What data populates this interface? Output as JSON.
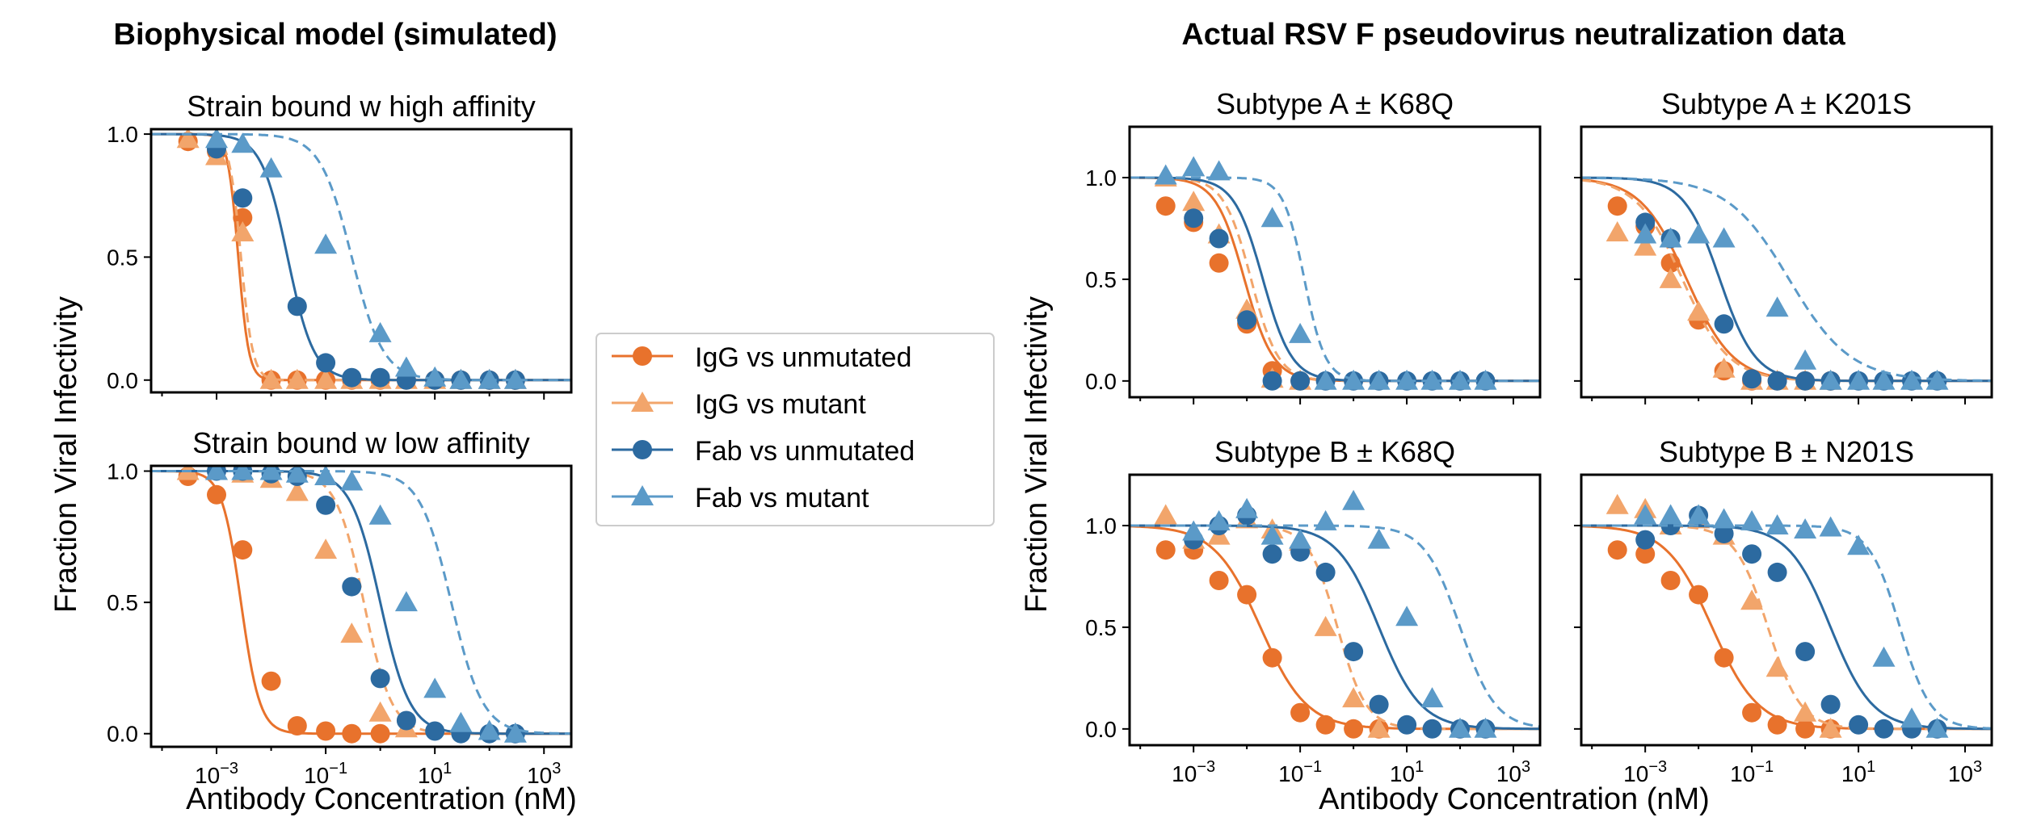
{
  "figure": {
    "left_title": "Biophysical model (simulated)",
    "right_title": "Actual RSV F pseudovirus neutralization data",
    "ylabel_left": "Fraction Viral Infectivity",
    "ylabel_right": "Fraction Viral Infectivity",
    "xlabel_left": "Antibody Concentration (nM)",
    "xlabel_right": "Antibody Concentration (nM)"
  },
  "legend": {
    "items": [
      {
        "label": "IgG vs unmutated",
        "color": "#e8722c",
        "marker": "circle",
        "line": "solid"
      },
      {
        "label": "IgG vs mutant",
        "color": "#f2a56b",
        "marker": "triangle",
        "line": "dashed"
      },
      {
        "label": "Fab vs unmutated",
        "color": "#2c6aa0",
        "marker": "circle",
        "line": "solid"
      },
      {
        "label": "Fab vs mutant",
        "color": "#5b9ac8",
        "marker": "triangle",
        "line": "dashed"
      }
    ]
  },
  "chart_data": [
    {
      "type": "line",
      "id": "sim-high",
      "title": "Strain bound w high affinity",
      "xscale": "log10",
      "xlim_exp": [
        -4.2,
        3.5
      ],
      "ylim": [
        -0.05,
        1.02
      ],
      "yticks": [
        "0.0",
        "0.5",
        "1.0"
      ],
      "xticks": [],
      "show_ylabels": true,
      "series": [
        {
          "name": "IgG vs unmutated",
          "ic50": 0.0025,
          "hill": 4.5,
          "x": [
            0.0003,
            0.001,
            0.003,
            0.01,
            0.03,
            0.1,
            0.3,
            1,
            3,
            10,
            30,
            100,
            300
          ],
          "y": [
            0.97,
            0.93,
            0.66,
            0.0,
            0.0,
            0.0,
            0.0,
            0.0,
            0.0,
            0.0,
            0.0,
            0.0,
            0.0
          ]
        },
        {
          "name": "IgG vs mutant",
          "ic50": 0.0028,
          "hill": 4.0,
          "x": [
            0.0003,
            0.001,
            0.003,
            0.01,
            0.03,
            0.1,
            0.3,
            1,
            3,
            10,
            30,
            100,
            300
          ],
          "y": [
            0.98,
            0.91,
            0.6,
            0.0,
            0.0,
            0.0,
            0.0,
            0.0,
            0.0,
            0.0,
            0.0,
            0.0,
            0.0
          ]
        },
        {
          "name": "Fab vs unmutated",
          "ic50": 0.02,
          "hill": 1.8,
          "x": [
            0.001,
            0.003,
            0.03,
            0.1,
            0.3,
            1,
            3,
            10,
            30,
            100,
            300
          ],
          "y": [
            0.94,
            0.74,
            0.3,
            0.07,
            0.01,
            0.01,
            0.0,
            0.0,
            0.0,
            0.0,
            0.0
          ]
        },
        {
          "name": "Fab vs mutant",
          "ic50": 0.3,
          "hill": 1.5,
          "x": [
            0.001,
            0.003,
            0.01,
            0.1,
            1,
            3,
            10,
            30,
            100,
            300
          ],
          "y": [
            0.98,
            0.96,
            0.86,
            0.55,
            0.19,
            0.05,
            0.01,
            0.0,
            0.0,
            0.0
          ]
        }
      ]
    },
    {
      "type": "line",
      "id": "sim-low",
      "title": "Strain bound w low affinity",
      "xscale": "log10",
      "xlim_exp": [
        -4.2,
        3.5
      ],
      "ylim": [
        -0.05,
        1.02
      ],
      "yticks": [
        "0.0",
        "0.5",
        "1.0"
      ],
      "xticks": [
        "-3",
        "-1",
        "1",
        "3"
      ],
      "show_ylabels": true,
      "series": [
        {
          "name": "IgG vs unmutated",
          "ic50": 0.0028,
          "hill": 2.5,
          "x": [
            0.0003,
            0.001,
            0.003,
            0.01,
            0.03,
            0.1,
            0.3,
            1
          ],
          "y": [
            0.98,
            0.91,
            0.7,
            0.2,
            0.03,
            0.01,
            0.0,
            0.0
          ]
        },
        {
          "name": "IgG vs mutant",
          "ic50": 0.5,
          "hill": 1.7,
          "x": [
            0.0003,
            0.001,
            0.003,
            0.01,
            0.03,
            0.1,
            0.3,
            1,
            3
          ],
          "y": [
            1.0,
            1.0,
            0.99,
            0.97,
            0.92,
            0.7,
            0.38,
            0.08,
            0.02
          ]
        },
        {
          "name": "Fab vs unmutated",
          "ic50": 1.0,
          "hill": 1.6,
          "x": [
            0.001,
            0.003,
            0.01,
            0.03,
            0.1,
            0.3,
            1,
            3,
            10,
            30,
            100,
            300
          ],
          "y": [
            1.0,
            1.0,
            0.99,
            0.98,
            0.87,
            0.56,
            0.21,
            0.05,
            0.01,
            0.0,
            0.0,
            0.0
          ]
        },
        {
          "name": "Fab vs mutant",
          "ic50": 20,
          "hill": 1.5,
          "x": [
            0.001,
            0.003,
            0.01,
            0.03,
            0.1,
            0.3,
            1,
            3,
            10,
            30,
            100,
            300
          ],
          "y": [
            1.0,
            1.0,
            1.0,
            0.99,
            0.98,
            0.96,
            0.83,
            0.5,
            0.17,
            0.04,
            0.01,
            0.0
          ]
        }
      ]
    },
    {
      "type": "line",
      "id": "rsv-a-k68q",
      "title": "Subtype A ± K68Q",
      "xscale": "log10",
      "xlim_exp": [
        -4.2,
        3.5
      ],
      "ylim": [
        -0.08,
        1.25
      ],
      "yticks": [
        "0.0",
        "0.5",
        "1.0"
      ],
      "xticks": [],
      "show_ylabels": true,
      "series": [
        {
          "name": "IgG vs unmutated",
          "ic50": 0.009,
          "hill": 1.6,
          "x": [
            0.0003,
            0.001,
            0.003,
            0.01,
            0.03,
            0.1
          ],
          "y": [
            0.86,
            0.78,
            0.58,
            0.28,
            0.05,
            0.0
          ]
        },
        {
          "name": "IgG vs mutant",
          "ic50": 0.012,
          "hill": 1.7,
          "x": [
            0.0003,
            0.001,
            0.003,
            0.01,
            0.03,
            0.1
          ],
          "y": [
            1.0,
            0.88,
            0.72,
            0.35,
            0.01,
            0.0
          ]
        },
        {
          "name": "Fab vs unmutated",
          "ic50": 0.02,
          "hill": 1.6,
          "x": [
            0.001,
            0.003,
            0.01,
            0.03,
            0.1,
            0.3,
            1,
            3,
            10,
            30,
            100,
            300
          ],
          "y": [
            0.8,
            0.7,
            0.3,
            0.0,
            0.0,
            0.0,
            0.0,
            0.0,
            0.0,
            0.0,
            0.0,
            0.0
          ]
        },
        {
          "name": "Fab vs mutant",
          "ic50": 0.12,
          "hill": 2.2,
          "x": [
            0.0003,
            0.001,
            0.003,
            0.03,
            0.1,
            0.3,
            1,
            3,
            10,
            30,
            100,
            300
          ],
          "y": [
            1.01,
            1.05,
            1.03,
            0.8,
            0.23,
            0.0,
            0.0,
            0.0,
            0.0,
            0.0,
            0.0,
            0.0
          ]
        }
      ]
    },
    {
      "type": "line",
      "id": "rsv-a-k201s",
      "title": "Subtype A ± K201S",
      "xscale": "log10",
      "xlim_exp": [
        -4.2,
        3.5
      ],
      "ylim": [
        -0.08,
        1.25
      ],
      "yticks": [
        "0.0",
        "0.5",
        "1.0"
      ],
      "xticks": [],
      "show_ylabels": false,
      "series": [
        {
          "name": "IgG vs unmutated",
          "ic50": 0.006,
          "hill": 1.0,
          "x": [
            0.0003,
            0.001,
            0.003,
            0.01,
            0.03,
            0.1,
            0.3,
            1,
            3
          ],
          "y": [
            0.86,
            0.76,
            0.58,
            0.3,
            0.05,
            0.0,
            0.0,
            0.0,
            0.0
          ]
        },
        {
          "name": "IgG vs mutant",
          "ic50": 0.005,
          "hill": 1.0,
          "x": [
            0.0003,
            0.001,
            0.003,
            0.01,
            0.03,
            0.1,
            0.3,
            1,
            3
          ],
          "y": [
            0.73,
            0.66,
            0.5,
            0.34,
            0.06,
            0.0,
            0.0,
            0.0,
            0.0
          ]
        },
        {
          "name": "Fab vs unmutated",
          "ic50": 0.025,
          "hill": 1.3,
          "x": [
            0.001,
            0.003,
            0.03,
            0.1,
            0.3,
            1,
            3,
            10,
            30,
            100,
            300
          ],
          "y": [
            0.78,
            0.7,
            0.28,
            0.01,
            0.0,
            0.0,
            0.0,
            0.0,
            0.0,
            0.0,
            0.0
          ]
        },
        {
          "name": "Fab vs mutant",
          "ic50": 0.5,
          "hill": 0.75,
          "x": [
            0.001,
            0.003,
            0.01,
            0.03,
            0.3,
            1,
            3,
            10,
            30,
            100,
            300
          ],
          "y": [
            0.72,
            0.7,
            0.72,
            0.7,
            0.36,
            0.1,
            0.0,
            0.0,
            0.0,
            0.0,
            0.0
          ]
        }
      ]
    },
    {
      "type": "line",
      "id": "rsv-b-k68q",
      "title": "Subtype B ± K68Q",
      "xscale": "log10",
      "xlim_exp": [
        -4.2,
        3.5
      ],
      "ylim": [
        -0.08,
        1.25
      ],
      "yticks": [
        "0.0",
        "0.5",
        "1.0"
      ],
      "xticks": [
        "-3",
        "-1",
        "1",
        "3"
      ],
      "show_ylabels": true,
      "series": [
        {
          "name": "IgG vs unmutated",
          "ic50": 0.018,
          "hill": 1.0,
          "x": [
            0.0003,
            0.001,
            0.003,
            0.01,
            0.03,
            0.1,
            0.3,
            1,
            3
          ],
          "y": [
            0.88,
            0.88,
            0.73,
            0.66,
            0.35,
            0.08,
            0.02,
            0.0,
            0.0
          ]
        },
        {
          "name": "IgG vs mutant",
          "ic50": 0.5,
          "hill": 1.6,
          "x": [
            0.0003,
            0.001,
            0.003,
            0.01,
            0.03,
            0.1,
            0.3,
            1,
            3
          ],
          "y": [
            1.05,
            0.93,
            0.95,
            1.03,
            0.98,
            0.92,
            0.5,
            0.15,
            0.0
          ]
        },
        {
          "name": "Fab vs unmutated",
          "ic50": 3.0,
          "hill": 1.1,
          "x": [
            0.001,
            0.003,
            0.01,
            0.03,
            0.1,
            0.3,
            1,
            3,
            10,
            30,
            100,
            300
          ],
          "y": [
            0.93,
            1.0,
            1.05,
            0.86,
            0.87,
            0.77,
            0.38,
            0.12,
            0.02,
            0.0,
            0.0,
            0.0
          ]
        },
        {
          "name": "Fab vs mutant",
          "ic50": 100,
          "hill": 1.3,
          "x": [
            0.001,
            0.003,
            0.01,
            0.03,
            0.1,
            0.3,
            1,
            3,
            10,
            30,
            100,
            300
          ],
          "y": [
            0.97,
            1.02,
            1.08,
            0.95,
            0.93,
            1.02,
            1.12,
            0.93,
            0.55,
            0.15,
            0.0,
            0.0
          ]
        }
      ]
    },
    {
      "type": "line",
      "id": "rsv-b-n201s",
      "title": "Subtype B ± N201S",
      "xscale": "log10",
      "xlim_exp": [
        -4.2,
        3.5
      ],
      "ylim": [
        -0.08,
        1.25
      ],
      "yticks": [
        "0.0",
        "0.5",
        "1.0"
      ],
      "xticks": [
        "-3",
        "-1",
        "1",
        "3"
      ],
      "show_ylabels": false,
      "series": [
        {
          "name": "IgG vs unmutated",
          "ic50": 0.018,
          "hill": 1.0,
          "x": [
            0.0003,
            0.001,
            0.003,
            0.01,
            0.03,
            0.1,
            0.3,
            1,
            3
          ],
          "y": [
            0.88,
            0.86,
            0.73,
            0.66,
            0.35,
            0.08,
            0.02,
            0.0,
            0.0
          ]
        },
        {
          "name": "IgG vs mutant",
          "ic50": 0.2,
          "hill": 1.4,
          "x": [
            0.0003,
            0.001,
            0.003,
            0.01,
            0.03,
            0.1,
            0.3,
            1,
            3
          ],
          "y": [
            1.1,
            1.08,
            1.0,
            1.03,
            0.95,
            0.63,
            0.3,
            0.08,
            0.0
          ]
        },
        {
          "name": "Fab vs unmutated",
          "ic50": 3.0,
          "hill": 1.1,
          "x": [
            0.001,
            0.003,
            0.01,
            0.03,
            0.1,
            0.3,
            1,
            3,
            10,
            30,
            100,
            300
          ],
          "y": [
            0.93,
            1.0,
            1.05,
            0.96,
            0.86,
            0.77,
            0.38,
            0.12,
            0.02,
            0.0,
            0.0,
            0.0
          ]
        },
        {
          "name": "Fab vs mutant",
          "ic50": 60,
          "hill": 1.5,
          "x": [
            0.001,
            0.003,
            0.01,
            0.03,
            0.1,
            0.3,
            1,
            3,
            10,
            30,
            100,
            300
          ],
          "y": [
            1.05,
            1.05,
            1.05,
            1.03,
            1.02,
            1.0,
            0.98,
            0.99,
            0.9,
            0.35,
            0.05,
            0.0
          ]
        }
      ]
    }
  ]
}
